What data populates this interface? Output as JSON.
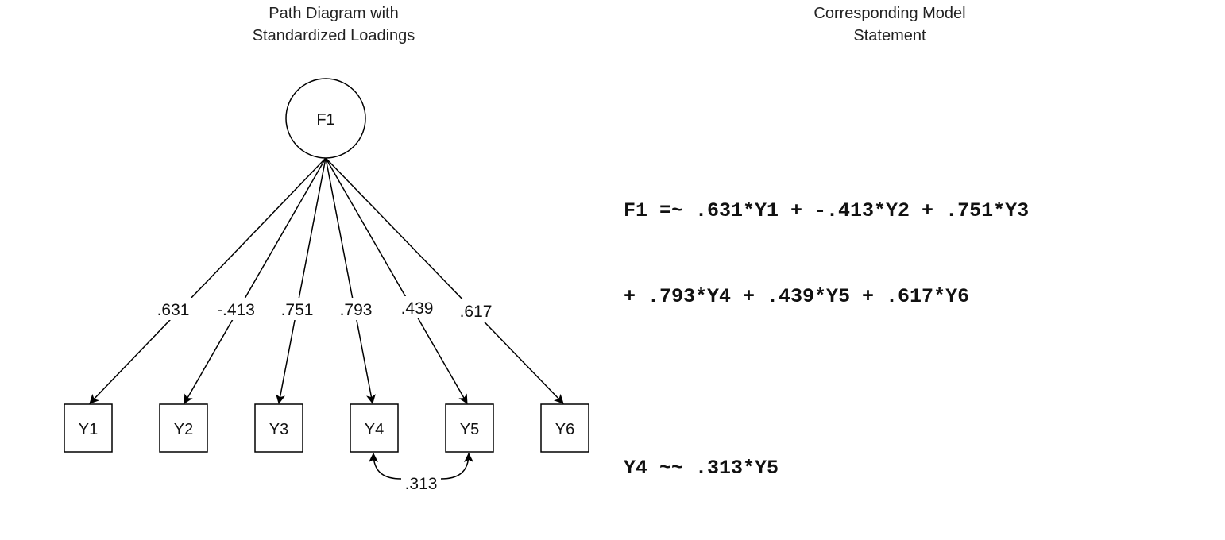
{
  "headings": {
    "diagram_line1": "Path Diagram with",
    "diagram_line2": "Standardized Loadings",
    "model_line1": "Corresponding Model",
    "model_line2": "Statement"
  },
  "diagram": {
    "factor": "F1",
    "indicators": [
      "Y1",
      "Y2",
      "Y3",
      "Y4",
      "Y5",
      "Y6"
    ],
    "loadings": [
      ".631",
      "-.413",
      ".751",
      ".793",
      ".439",
      ".617"
    ],
    "covariance": {
      "from": "Y4",
      "to": "Y5",
      "label": ".313"
    }
  },
  "model_statement": {
    "line1": "F1 =~ .631*Y1 + -.413*Y2 + .751*Y3",
    "line2": "+ .793*Y4 + .439*Y5 + .617*Y6",
    "line3": "Y4 ~~ .313*Y5"
  }
}
